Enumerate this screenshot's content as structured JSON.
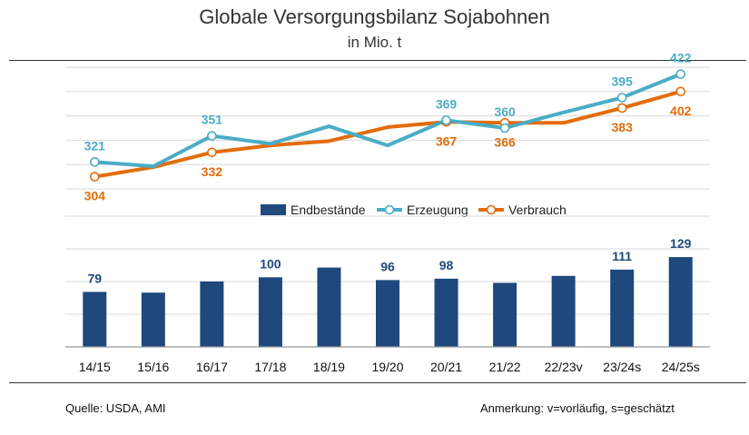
{
  "chart_data": {
    "type": "combo",
    "title": "Globale Versorgungsbilanz Sojabohnen",
    "subtitle": "in Mio. t",
    "categories": [
      "14/15",
      "15/16",
      "16/17",
      "17/18",
      "18/19",
      "19/20",
      "20/21",
      "21/22",
      "22/23v",
      "23/24s",
      "24/25s"
    ],
    "line_series": [
      {
        "name": "Erzeugung",
        "color": "#4bacc6",
        "values": [
          321,
          316,
          351,
          342,
          362,
          340,
          369,
          360,
          378,
          395,
          422
        ],
        "labeled": [
          0,
          2,
          6,
          7,
          9,
          10
        ]
      },
      {
        "name": "Verbrauch",
        "color": "#e36c0a",
        "values": [
          304,
          315,
          332,
          340,
          345,
          361,
          367,
          366,
          366,
          383,
          402
        ],
        "labeled": [
          0,
          2,
          6,
          7,
          9,
          10
        ]
      }
    ],
    "bar_series": {
      "name": "Endbestände",
      "color": "#1f497d",
      "values": [
        79,
        78,
        94,
        100,
        114,
        96,
        98,
        92,
        102,
        111,
        129
      ],
      "labeled": [
        0,
        3,
        5,
        6,
        9,
        10
      ]
    },
    "legend_position": "middle-right",
    "grid": true
  },
  "footer": {
    "source": "Quelle: USDA, AMI",
    "note": "Anmerkung: v=vorläufig, s=geschätzt"
  }
}
